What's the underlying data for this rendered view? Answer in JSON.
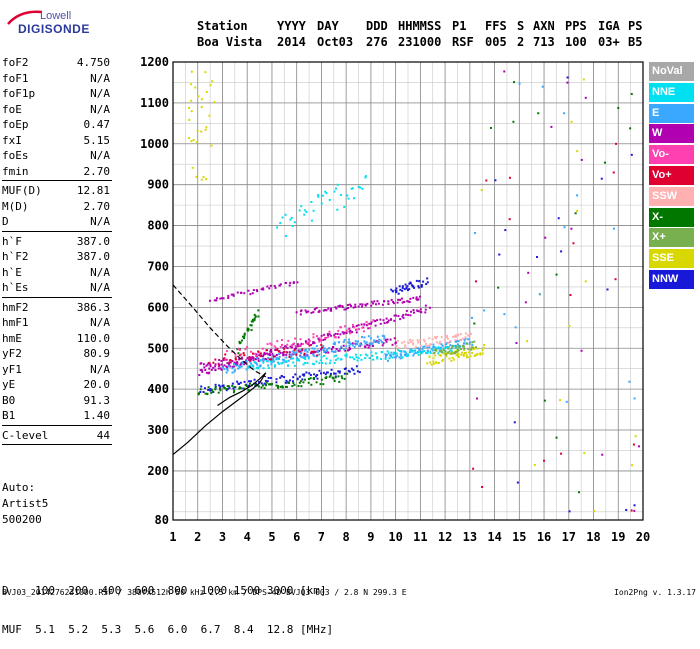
{
  "logo": {
    "line1": "Lowell",
    "line2": "DIGISONDE"
  },
  "header": {
    "row1": [
      "Station",
      "YYYY",
      "DAY",
      "DDD",
      "HHMMSS",
      "P1",
      "FFS",
      "S",
      "AXN",
      "PPS",
      "IGA",
      "PS"
    ],
    "row2": [
      "Boa Vista",
      "2014",
      "Oct03",
      "276",
      "231000",
      "RSF",
      "005",
      "2",
      "713",
      "100",
      "03+",
      "B5"
    ]
  },
  "params": [
    {
      "label": "foF2",
      "value": "4.750"
    },
    {
      "label": "foF1",
      "value": "N/A"
    },
    {
      "label": "foF1p",
      "value": "N/A"
    },
    {
      "label": "foE",
      "value": "N/A"
    },
    {
      "label": "foEp",
      "value": "0.47"
    },
    {
      "label": "fxI",
      "value": "5.15"
    },
    {
      "label": "foEs",
      "value": "N/A"
    },
    {
      "label": "fmin",
      "value": "2.70"
    },
    {
      "sep": true
    },
    {
      "label": "MUF(D)",
      "value": "12.81"
    },
    {
      "label": "M(D)",
      "value": "2.70"
    },
    {
      "label": "D",
      "value": "N/A"
    },
    {
      "sep": true
    },
    {
      "label": "h`F",
      "value": "387.0"
    },
    {
      "label": "h`F2",
      "value": "387.0"
    },
    {
      "label": "h`E",
      "value": "N/A"
    },
    {
      "label": "h`Es",
      "value": "N/A"
    },
    {
      "sep": true
    },
    {
      "label": "hmF2",
      "value": "386.3"
    },
    {
      "label": "hmF1",
      "value": "N/A"
    },
    {
      "label": "hmE",
      "value": "110.0"
    },
    {
      "label": "yF2",
      "value": "80.9"
    },
    {
      "label": "yF1",
      "value": "N/A"
    },
    {
      "label": "yE",
      "value": "20.0"
    },
    {
      "label": "B0",
      "value": "91.3"
    },
    {
      "label": "B1",
      "value": "1.40"
    },
    {
      "sep": true
    },
    {
      "label": "C-level",
      "value": "44"
    },
    {
      "sep": true
    }
  ],
  "auto": {
    "line1": "Auto:",
    "line2": "Artist5",
    "line3": "500200"
  },
  "muf_table": {
    "row1": "D    100  200  400  600  800  1000 1500 3000 [km]",
    "row2": "MUF  5.1  5.2  5.3  5.6  6.0  6.7  8.4  12.8 [MHz]"
  },
  "footer": {
    "left": "BVJ03_2014276231000.RSF / 380fx512h 50 kHz 2.5 km / DPS-4D BVJ03 003 / 2.8 N 299.3 E",
    "right": "Ion2Png v. 1.3.17"
  },
  "legend": [
    {
      "label": "NoVal",
      "color": "#a8a8a8"
    },
    {
      "label": "NNE",
      "color": "#00e0f0"
    },
    {
      "label": "E",
      "color": "#3aa8ff"
    },
    {
      "label": "W",
      "color": "#b000b0"
    },
    {
      "label": "Vo-",
      "color": "#ff40b0"
    },
    {
      "label": "Vo+",
      "color": "#e00030"
    },
    {
      "label": "SSW",
      "color": "#ffb0b0"
    },
    {
      "label": "X-",
      "color": "#007800"
    },
    {
      "label": "X+",
      "color": "#78b050"
    },
    {
      "label": "SSE",
      "color": "#d8d800"
    },
    {
      "label": "NNW",
      "color": "#1818d8"
    }
  ],
  "chart_data": {
    "type": "scatter",
    "xlim": [
      1,
      20
    ],
    "ylim": [
      80,
      1200
    ],
    "x_ticks": [
      1,
      2,
      3,
      4,
      5,
      6,
      7,
      8,
      9,
      10,
      11,
      12,
      13,
      14,
      15,
      16,
      17,
      18,
      19,
      20
    ],
    "y_ticks": [
      80,
      200,
      300,
      400,
      500,
      600,
      700,
      800,
      900,
      1000,
      1100,
      1200
    ],
    "grid": true,
    "legend_position": "right",
    "traces": [
      {
        "name": "W",
        "color": "#b000b0",
        "start": [
          2.0,
          440
        ],
        "end": [
          11.3,
          600
        ],
        "n": 160,
        "jitter": 8
      },
      {
        "name": "W",
        "color": "#b000b0",
        "start": [
          2.0,
          460
        ],
        "end": [
          10.0,
          520
        ],
        "n": 120,
        "jitter": 8
      },
      {
        "name": "W",
        "color": "#b000b0",
        "start": [
          2.5,
          620
        ],
        "end": [
          6.0,
          665
        ],
        "n": 40,
        "jitter": 5
      },
      {
        "name": "W",
        "color": "#b000b0",
        "start": [
          6.0,
          590
        ],
        "end": [
          11.0,
          625
        ],
        "n": 80,
        "jitter": 6
      },
      {
        "name": "NNW",
        "color": "#1818d8",
        "start": [
          2.0,
          400
        ],
        "end": [
          8.5,
          450
        ],
        "n": 100,
        "jitter": 10
      },
      {
        "name": "NNW",
        "color": "#1818d8",
        "start": [
          9.8,
          640
        ],
        "end": [
          11.2,
          665
        ],
        "n": 40,
        "jitter": 10
      },
      {
        "name": "E",
        "color": "#3aa8ff",
        "start": [
          3.0,
          450
        ],
        "end": [
          9.5,
          530
        ],
        "n": 150,
        "jitter": 12
      },
      {
        "name": "E",
        "color": "#3aa8ff",
        "start": [
          9.5,
          480
        ],
        "end": [
          13.0,
          520
        ],
        "n": 90,
        "jitter": 10
      },
      {
        "name": "NNE",
        "color": "#00e0f0",
        "start": [
          4.0,
          460
        ],
        "end": [
          12.5,
          500
        ],
        "n": 130,
        "jitter": 10
      },
      {
        "name": "NNE",
        "color": "#00e0f0",
        "start": [
          5.2,
          800
        ],
        "end": [
          8.8,
          910
        ],
        "n": 40,
        "jitter": 35
      },
      {
        "name": "X-",
        "color": "#007800",
        "start": [
          2.0,
          395
        ],
        "end": [
          8.0,
          430
        ],
        "n": 90,
        "jitter": 10
      },
      {
        "name": "X-",
        "color": "#007800",
        "start": [
          3.6,
          500
        ],
        "end": [
          4.4,
          590
        ],
        "n": 30,
        "jitter": 10
      },
      {
        "name": "SSE",
        "color": "#d8d800",
        "start": [
          11.3,
          470
        ],
        "end": [
          13.5,
          500
        ],
        "n": 70,
        "jitter": 12
      },
      {
        "name": "SSW",
        "color": "#ffb0b0",
        "start": [
          10.0,
          510
        ],
        "end": [
          13.0,
          530
        ],
        "n": 60,
        "jitter": 10
      },
      {
        "name": "Vo-",
        "color": "#ff40b0",
        "start": [
          3.0,
          480
        ],
        "end": [
          9.0,
          560
        ],
        "n": 70,
        "jitter": 14
      },
      {
        "name": "Vo+",
        "color": "#e00030",
        "start": [
          2.5,
          470
        ],
        "end": [
          7.0,
          500
        ],
        "n": 40,
        "jitter": 14
      },
      {
        "name": "X+",
        "color": "#78b050",
        "start": [
          11.5,
          490
        ],
        "end": [
          13.2,
          510
        ],
        "n": 40,
        "jitter": 10
      }
    ],
    "profile_curve": [
      [
        1.0,
        240
      ],
      [
        1.6,
        270
      ],
      [
        2.3,
        310
      ],
      [
        3.0,
        345
      ],
      [
        3.6,
        372
      ],
      [
        4.1,
        395
      ],
      [
        4.5,
        415
      ],
      [
        4.75,
        440
      ]
    ],
    "dashed_curve": [
      [
        1.0,
        655
      ],
      [
        1.8,
        600
      ],
      [
        2.5,
        550
      ],
      [
        3.2,
        505
      ],
      [
        3.8,
        470
      ],
      [
        4.3,
        445
      ],
      [
        4.75,
        430
      ]
    ],
    "trace_fit_curve": [
      [
        2.8,
        360
      ],
      [
        3.3,
        380
      ],
      [
        3.8,
        395
      ],
      [
        4.2,
        410
      ],
      [
        4.5,
        425
      ],
      [
        4.75,
        440
      ]
    ]
  }
}
